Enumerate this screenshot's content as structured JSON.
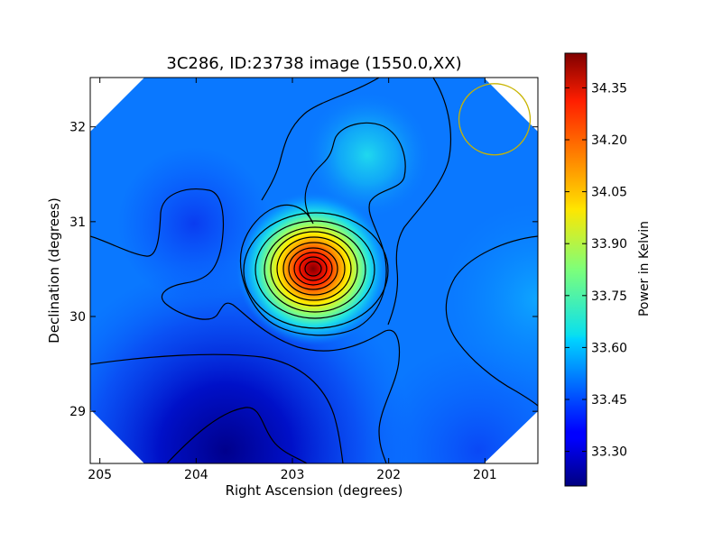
{
  "chart_data": {
    "type": "heatmap",
    "title": "3C286, ID:23738 image (1550.0,XX)",
    "xlabel": "Right Ascension (degrees)",
    "ylabel": "Declination (degrees)",
    "xlim": [
      205.1,
      200.45
    ],
    "ylim": [
      28.45,
      32.52
    ],
    "x_ticks": [
      "205",
      "204",
      "203",
      "202",
      "201"
    ],
    "x_tick_values": [
      205,
      204,
      203,
      202,
      201
    ],
    "y_ticks": [
      "29",
      "30",
      "31",
      "32"
    ],
    "y_tick_values": [
      29,
      30,
      31,
      32
    ],
    "colorbar": {
      "label": "Power in Kelvin",
      "range": [
        33.2,
        34.45
      ],
      "ticks": [
        "33.30",
        "33.45",
        "33.60",
        "33.75",
        "33.90",
        "34.05",
        "34.20",
        "34.35"
      ],
      "tick_values": [
        33.3,
        33.45,
        33.6,
        33.75,
        33.9,
        34.05,
        34.2,
        34.35
      ],
      "colormap": "jet"
    },
    "features": [
      {
        "name": "peak",
        "ra": 202.75,
        "dec": 30.52,
        "value": 34.42
      },
      {
        "name": "secondary-max",
        "ra": 202.2,
        "dec": 31.68,
        "value": 33.6
      },
      {
        "name": "east-max",
        "ra": 200.5,
        "dec": 30.2,
        "value": 33.57
      },
      {
        "name": "south-min",
        "ra": 203.8,
        "dec": 28.7,
        "value": 33.22
      }
    ],
    "beam_circle": {
      "ra": 200.9,
      "dec": 32.08,
      "radius_deg": 0.37,
      "color": "#c8b400"
    },
    "contours": "black"
  }
}
